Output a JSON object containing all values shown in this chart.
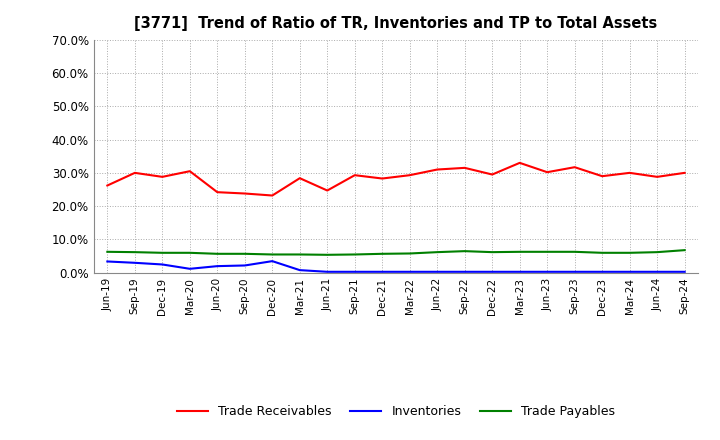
{
  "title": "[3771]  Trend of Ratio of TR, Inventories and TP to Total Assets",
  "x_labels": [
    "Jun-19",
    "Sep-19",
    "Dec-19",
    "Mar-20",
    "Jun-20",
    "Sep-20",
    "Dec-20",
    "Mar-21",
    "Jun-21",
    "Sep-21",
    "Dec-21",
    "Mar-22",
    "Jun-22",
    "Sep-22",
    "Dec-22",
    "Mar-23",
    "Jun-23",
    "Sep-23",
    "Dec-23",
    "Mar-24",
    "Jun-24",
    "Sep-24"
  ],
  "trade_receivables": [
    0.262,
    0.3,
    0.288,
    0.305,
    0.242,
    0.238,
    0.232,
    0.284,
    0.247,
    0.293,
    0.283,
    0.293,
    0.31,
    0.315,
    0.295,
    0.33,
    0.302,
    0.317,
    0.29,
    0.3,
    0.288,
    0.3
  ],
  "inventories": [
    0.034,
    0.03,
    0.025,
    0.012,
    0.02,
    0.022,
    0.035,
    0.008,
    0.003,
    0.003,
    0.003,
    0.003,
    0.003,
    0.003,
    0.003,
    0.003,
    0.003,
    0.003,
    0.003,
    0.003,
    0.003,
    0.003
  ],
  "trade_payables": [
    0.063,
    0.062,
    0.06,
    0.06,
    0.057,
    0.057,
    0.055,
    0.055,
    0.054,
    0.055,
    0.057,
    0.058,
    0.062,
    0.065,
    0.062,
    0.063,
    0.063,
    0.063,
    0.06,
    0.06,
    0.062,
    0.068
  ],
  "ylim": [
    0.0,
    0.7
  ],
  "yticks": [
    0.0,
    0.1,
    0.2,
    0.3,
    0.4,
    0.5,
    0.6,
    0.7
  ],
  "color_tr": "#FF0000",
  "color_inv": "#0000FF",
  "color_tp": "#008000",
  "background_color": "#FFFFFF",
  "grid_color": "#AAAAAA",
  "legend_labels": [
    "Trade Receivables",
    "Inventories",
    "Trade Payables"
  ]
}
